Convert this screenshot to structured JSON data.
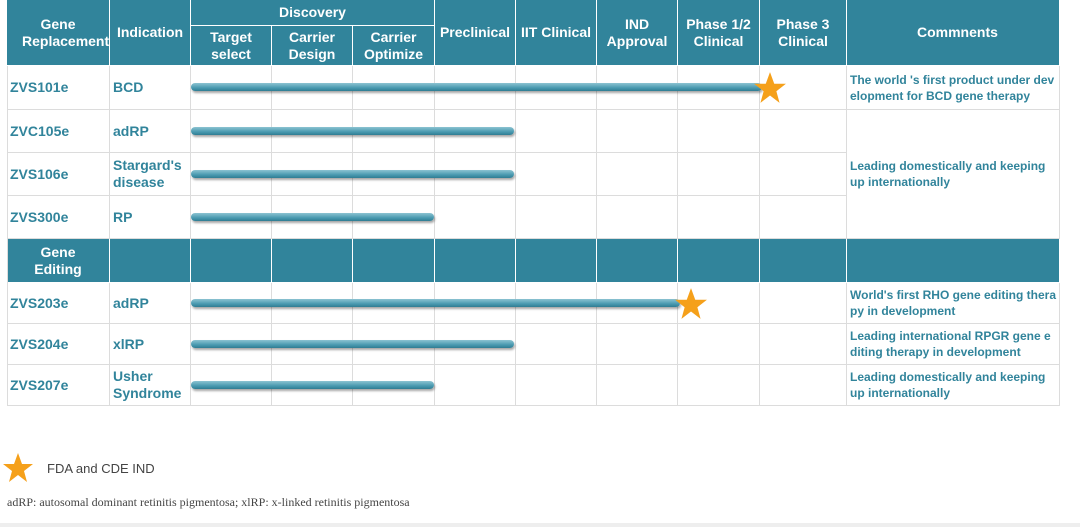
{
  "header": {
    "gene_replacement": "Gene Replacement",
    "indication": "Indication",
    "discovery": "Discovery",
    "stages": [
      "Target select",
      "Carrier Design",
      "Carrier Optimize",
      "Preclinical",
      "IIT Clinical",
      "IND Approval",
      "Phase 1/2 Clinical",
      "Phase 3 Clinical"
    ],
    "comments": "Commnents"
  },
  "gene_replacement": [
    {
      "code": "ZVS101e",
      "indication": "BCD",
      "comment": "The world 's first product under development for BCD gene therapy"
    },
    {
      "code": "ZVC105e",
      "indication": "adRP"
    },
    {
      "code": "ZVS106e",
      "indication": "Stargard's disease"
    },
    {
      "code": "ZVS300e",
      "indication": "RP"
    }
  ],
  "group_comment": "Leading domestically and keeping up internationally",
  "gene_editing_label": "Gene Editing",
  "gene_editing": [
    {
      "code": "ZVS203e",
      "indication": "adRP",
      "comment": "World's first RHO gene editing therapy in development"
    },
    {
      "code": "ZVS204e",
      "indication": "xlRP",
      "comment": "Leading international RPGR gene editing therapy in development"
    },
    {
      "code": "ZVS207e",
      "indication": "Usher Syndrome",
      "comment": "Leading domestically and keeping up internationally"
    }
  ],
  "legend": "FDA and CDE IND",
  "footnote": "adRP: autosomal dominant retinitis pigmentosa; xlRP: x-linked retinitis pigmentosa"
}
